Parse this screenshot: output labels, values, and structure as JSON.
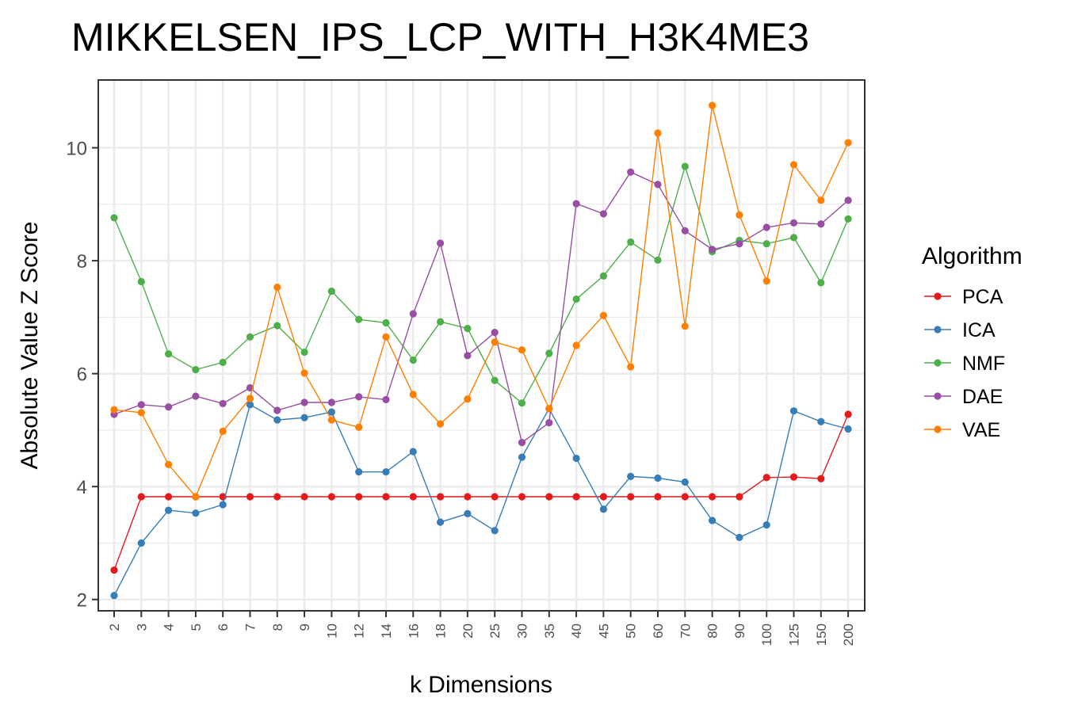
{
  "chart_data": {
    "type": "line",
    "title": "MIKKELSEN_IPS_LCP_WITH_H3K4ME3",
    "xlabel": "k Dimensions",
    "ylabel": "Absolute Value Z Score",
    "categories": [
      "2",
      "3",
      "4",
      "5",
      "6",
      "7",
      "8",
      "9",
      "10",
      "12",
      "14",
      "16",
      "18",
      "20",
      "25",
      "30",
      "35",
      "40",
      "45",
      "50",
      "60",
      "70",
      "80",
      "90",
      "100",
      "125",
      "150",
      "200"
    ],
    "ylim": [
      1.8,
      11.2
    ],
    "yticks": [
      2,
      4,
      6,
      8,
      10
    ],
    "grid": true,
    "legend": {
      "title": "Algorithm",
      "placement": "right"
    },
    "series": [
      {
        "name": "PCA",
        "color": "#e41a1c",
        "values": [
          2.52,
          3.82,
          3.82,
          3.82,
          3.82,
          3.82,
          3.82,
          3.82,
          3.82,
          3.82,
          3.82,
          3.82,
          3.82,
          3.82,
          3.82,
          3.82,
          3.82,
          3.82,
          3.82,
          3.82,
          3.82,
          3.82,
          3.82,
          3.82,
          4.16,
          4.17,
          4.14,
          5.28
        ]
      },
      {
        "name": "ICA",
        "color": "#377eb8",
        "values": [
          2.07,
          3.0,
          3.58,
          3.53,
          3.68,
          5.45,
          5.18,
          5.22,
          5.32,
          4.26,
          4.26,
          4.62,
          3.37,
          3.52,
          3.22,
          4.52,
          5.38,
          4.5,
          3.6,
          4.18,
          4.15,
          4.08,
          3.4,
          3.1,
          3.32,
          5.34,
          5.15,
          5.02
        ]
      },
      {
        "name": "NMF",
        "color": "#4daf4a",
        "values": [
          8.76,
          7.63,
          6.35,
          6.07,
          6.2,
          6.65,
          6.85,
          6.38,
          7.46,
          6.96,
          6.9,
          6.24,
          6.92,
          6.8,
          5.88,
          5.48,
          6.36,
          7.32,
          7.73,
          8.33,
          8.01,
          9.67,
          8.16,
          8.36,
          8.3,
          8.41,
          7.61,
          8.74
        ]
      },
      {
        "name": "DAE",
        "color": "#984ea3",
        "values": [
          5.28,
          5.45,
          5.41,
          5.6,
          5.47,
          5.75,
          5.35,
          5.49,
          5.49,
          5.59,
          5.54,
          7.06,
          8.31,
          6.32,
          6.73,
          4.78,
          5.13,
          9.01,
          8.83,
          9.57,
          9.35,
          8.53,
          8.2,
          8.3,
          8.59,
          8.67,
          8.65,
          9.07
        ]
      },
      {
        "name": "VAE",
        "color": "#ff7f00",
        "values": [
          5.36,
          5.31,
          4.39,
          3.82,
          4.98,
          5.56,
          7.53,
          6.01,
          5.18,
          5.05,
          6.65,
          5.63,
          5.11,
          5.55,
          6.56,
          6.42,
          5.38,
          6.5,
          7.03,
          6.12,
          10.26,
          6.84,
          10.75,
          8.81,
          7.64,
          9.7,
          9.07,
          10.09
        ]
      }
    ]
  }
}
